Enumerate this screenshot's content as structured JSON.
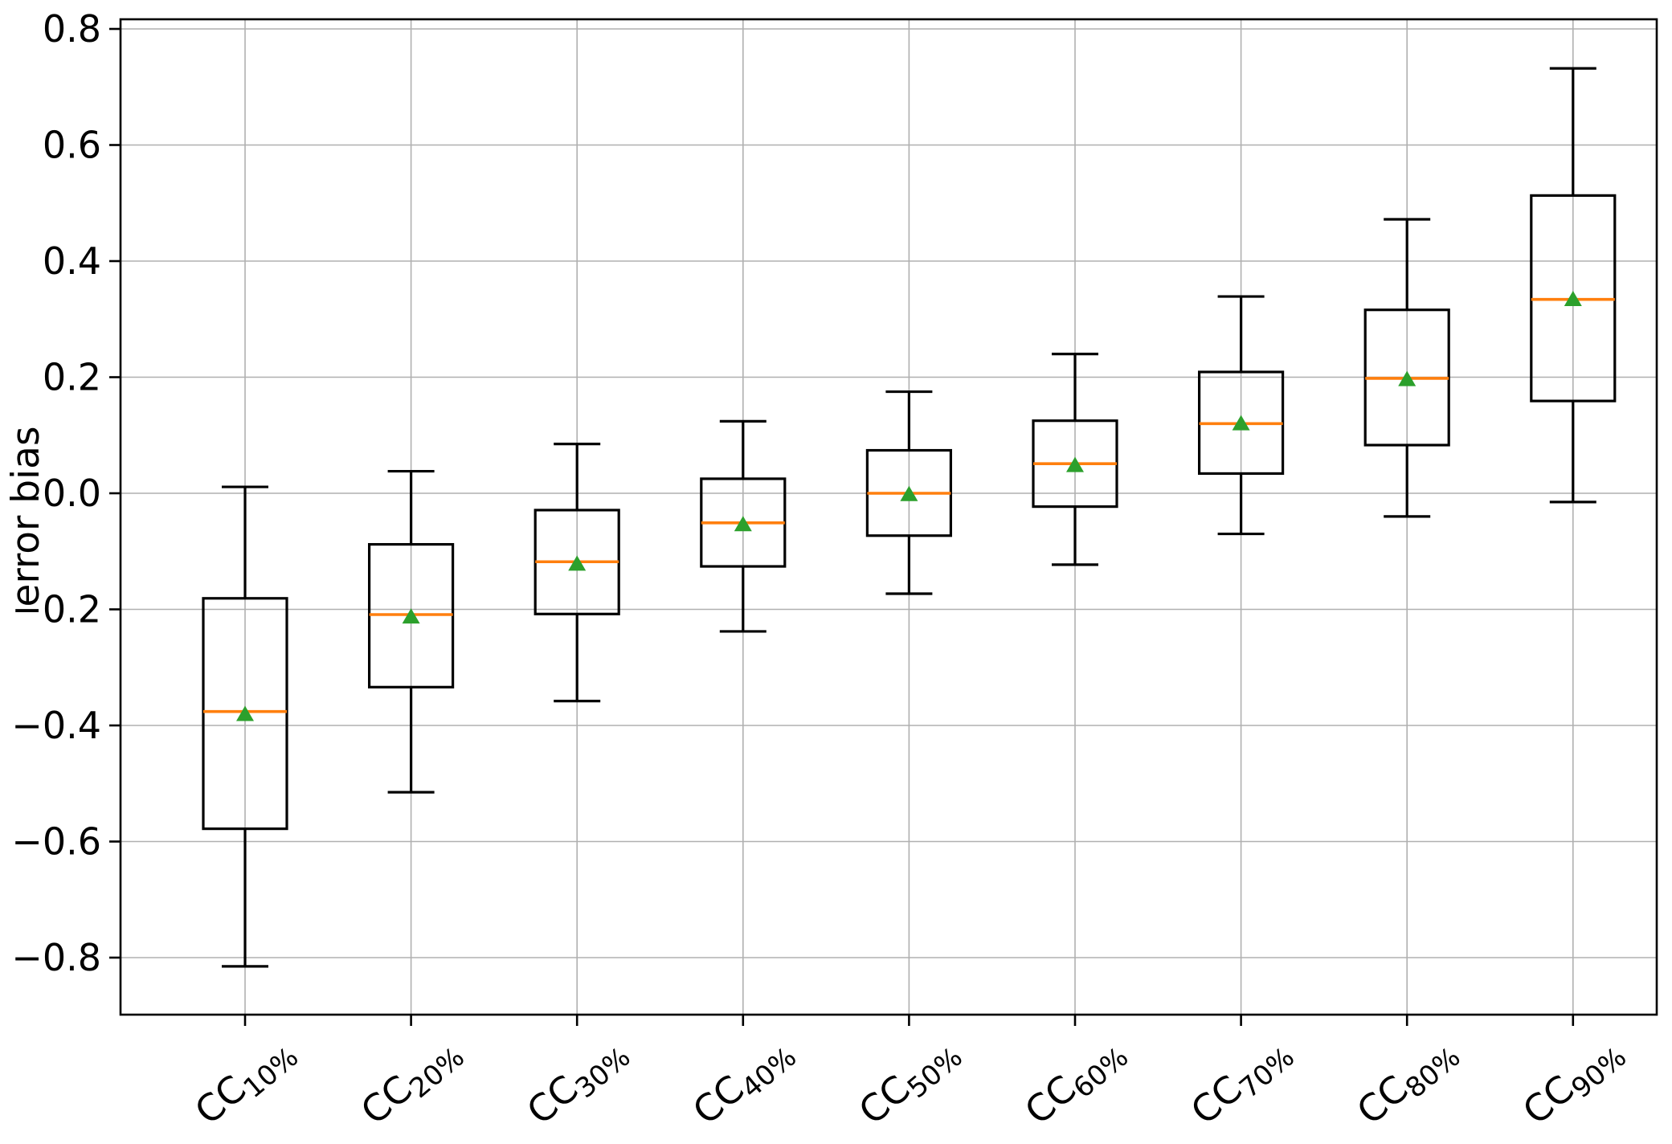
{
  "figure": {
    "background": "#ffffff"
  },
  "chart_data": {
    "type": "boxplot",
    "title": "",
    "xlabel": "",
    "ylabel": "error bias",
    "ylim": [
      -0.898,
      0.817
    ],
    "yticks": [
      0.8,
      0.6,
      0.4,
      0.2,
      0.0,
      -0.2,
      -0.4,
      -0.6,
      -0.8
    ],
    "grid": true,
    "legend_position": "none",
    "categories": [
      {
        "prefix": "CC",
        "sub": "10%"
      },
      {
        "prefix": "CC",
        "sub": "20%"
      },
      {
        "prefix": "CC",
        "sub": "30%"
      },
      {
        "prefix": "CC",
        "sub": "40%"
      },
      {
        "prefix": "CC",
        "sub": "50%"
      },
      {
        "prefix": "CC",
        "sub": "60%"
      },
      {
        "prefix": "CC",
        "sub": "70%"
      },
      {
        "prefix": "CC",
        "sub": "80%"
      },
      {
        "prefix": "CC",
        "sub": "90%"
      }
    ],
    "boxes": [
      {
        "label": "CC10%",
        "whisker_low": -0.815,
        "q1": -0.578,
        "median": -0.376,
        "mean": -0.38,
        "q3": -0.181,
        "whisker_high": 0.011
      },
      {
        "label": "CC20%",
        "whisker_low": -0.515,
        "q1": -0.334,
        "median": -0.209,
        "mean": -0.212,
        "q3": -0.088,
        "whisker_high": 0.038
      },
      {
        "label": "CC30%",
        "whisker_low": -0.358,
        "q1": -0.208,
        "median": -0.118,
        "mean": -0.121,
        "q3": -0.029,
        "whisker_high": 0.085
      },
      {
        "label": "CC40%",
        "whisker_low": -0.238,
        "q1": -0.126,
        "median": -0.051,
        "mean": -0.053,
        "q3": 0.025,
        "whisker_high": 0.124
      },
      {
        "label": "CC50%",
        "whisker_low": -0.173,
        "q1": -0.073,
        "median": 0.0,
        "mean": -0.001,
        "q3": 0.074,
        "whisker_high": 0.175
      },
      {
        "label": "CC60%",
        "whisker_low": -0.123,
        "q1": -0.023,
        "median": 0.051,
        "mean": 0.049,
        "q3": 0.125,
        "whisker_high": 0.24
      },
      {
        "label": "CC70%",
        "whisker_low": -0.07,
        "q1": 0.034,
        "median": 0.12,
        "mean": 0.121,
        "q3": 0.209,
        "whisker_high": 0.339
      },
      {
        "label": "CC80%",
        "whisker_low": -0.04,
        "q1": 0.083,
        "median": 0.198,
        "mean": 0.197,
        "q3": 0.316,
        "whisker_high": 0.472
      },
      {
        "label": "CC90%",
        "whisker_low": -0.015,
        "q1": 0.159,
        "median": 0.334,
        "mean": 0.335,
        "q3": 0.513,
        "whisker_high": 0.732
      }
    ],
    "colors": {
      "box_line": "#000000",
      "whisker_line": "#000000",
      "median_line": "#ff7f0e",
      "mean_marker": "#2ca02c",
      "grid_line": "#b0b0b0",
      "spine": "#000000",
      "tick_label": "#000000"
    },
    "mean_marker_shape": "triangle-up"
  }
}
